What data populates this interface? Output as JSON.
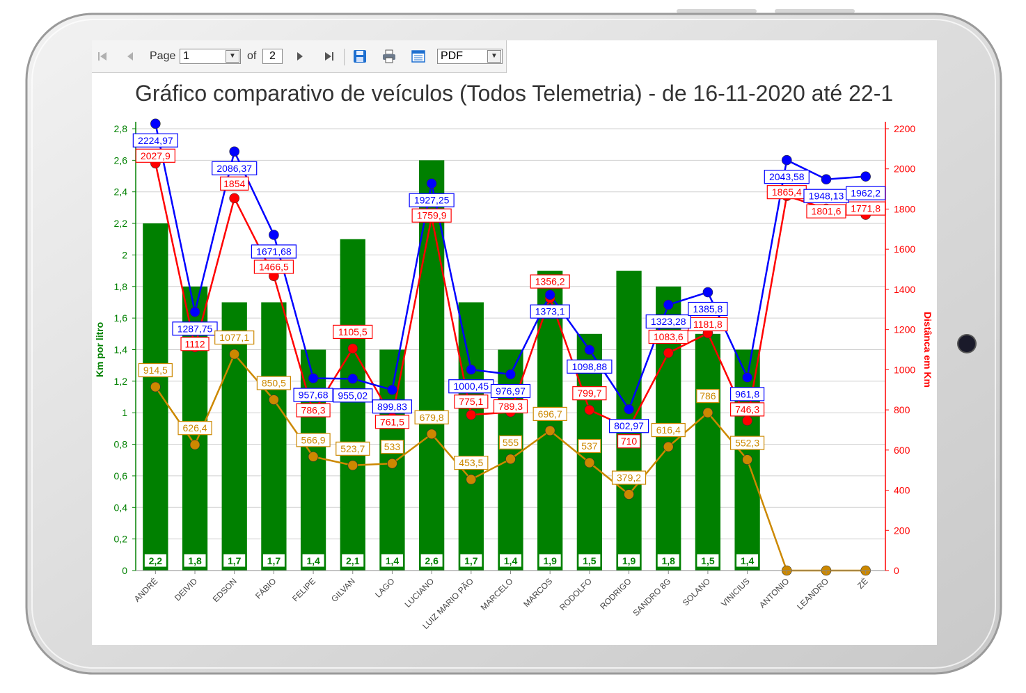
{
  "toolbar": {
    "page_label": "Page",
    "page_value": "1",
    "of_label": "of",
    "total_pages": "2",
    "format_value": "PDF"
  },
  "colors": {
    "bar": "#008000",
    "left_axis": "#008000",
    "right_axis": "#ff0000",
    "series_red": "#ff0000",
    "series_blue": "#0000ff",
    "series_orange": "#cc8800"
  },
  "chart_data": {
    "type": "bar",
    "title": "Gráfico comparativo de veículos (Todos Telemetria) - de 16-11-2020 até 22-1",
    "ylabel": "Km por litro",
    "y2label": "Distânca em Km",
    "ylim": [
      0,
      2.8
    ],
    "y2lim": [
      0,
      2200
    ],
    "y_ticks": [
      "0",
      "0,2",
      "0,4",
      "0,6",
      "0,8",
      "1",
      "1,2",
      "1,4",
      "1,6",
      "1,8",
      "2",
      "2,2",
      "2,4",
      "2,6",
      "2,8"
    ],
    "y2_ticks": [
      "0",
      "200",
      "400",
      "600",
      "800",
      "1000",
      "1200",
      "1400",
      "1600",
      "1800",
      "2000",
      "2200"
    ],
    "grid": true,
    "categories": [
      "ANDRÉ",
      "DEIVID",
      "EDSON",
      "FÁBIO",
      "FELIPE",
      "GILVAN",
      "LAGO",
      "LUCIANO",
      "LUIZ MARIO PÃO",
      "MARCELO",
      "MARCOS",
      "RODOLFO",
      "RODRIGO",
      "SANDRO 8G",
      "SOLANO",
      "VINICIUS",
      "ANTONIO",
      "LEANDRO",
      "ZÉ"
    ],
    "bars": {
      "values": [
        2.2,
        1.8,
        1.7,
        1.7,
        1.4,
        2.1,
        1.4,
        2.6,
        1.7,
        1.4,
        1.9,
        1.5,
        1.9,
        1.8,
        1.5,
        1.4,
        null,
        null,
        null
      ],
      "labels": [
        "2,2",
        "1,8",
        "1,7",
        "1,7",
        "1,4",
        "2,1",
        "1,4",
        "2,6",
        "1,7",
        "1,4",
        "1,9",
        "1,5",
        "1,9",
        "1,8",
        "1,5",
        "1,4",
        "",
        "",
        ""
      ]
    },
    "series": [
      {
        "color": "#ff0000",
        "values": [
          2027.9,
          1112,
          1854,
          1466.5,
          786.3,
          1105.5,
          761.5,
          1759.9,
          775.1,
          789.3,
          1356.2,
          799.7,
          710,
          1083.6,
          1181.8,
          746.3,
          1865.4,
          1801.6,
          1771.8
        ],
        "labels": [
          "2027,9",
          "1112",
          "1854",
          "1466,5",
          "786,3",
          "1105,5",
          "761,5",
          "1759,9",
          "775,1",
          "789,3",
          "1356,2",
          "799,7",
          "710",
          "1083,6",
          "1181,8",
          "746,3",
          "1865,4",
          "1801,6",
          "1771,8"
        ]
      },
      {
        "color": "#0000ff",
        "values": [
          2224.97,
          1287.75,
          2086.37,
          1671.68,
          957.68,
          955.02,
          899.83,
          1927.25,
          1000.45,
          976.97,
          1373.1,
          1098.88,
          802.97,
          1323.28,
          1385.8,
          961.8,
          2043.58,
          1948.13,
          1962.2
        ],
        "labels": [
          "2224,97",
          "1287,75",
          "2086,37",
          "1671,68",
          "957,68",
          "955,02",
          "899,83",
          "1927,25",
          "1000,45",
          "976,97",
          "1373,1",
          "1098,88",
          "802,97",
          "1323,28",
          "1385,8",
          "961,8",
          "2043,58",
          "1948,13",
          "1962,2"
        ]
      },
      {
        "color": "#cc8800",
        "values": [
          914.5,
          626.4,
          1077.1,
          850.5,
          566.9,
          523.7,
          533,
          679.8,
          453.5,
          555,
          696.7,
          537,
          379.2,
          616.4,
          786,
          552.3,
          0,
          0,
          0
        ],
        "labels": [
          "914,5",
          "626,4",
          "1077,1",
          "850,5",
          "566,9",
          "523,7",
          "533",
          "679,8",
          "453,5",
          "555",
          "696,7",
          "537",
          "379,2",
          "616,4",
          "786",
          "552,3",
          "",
          "",
          ""
        ]
      }
    ]
  }
}
